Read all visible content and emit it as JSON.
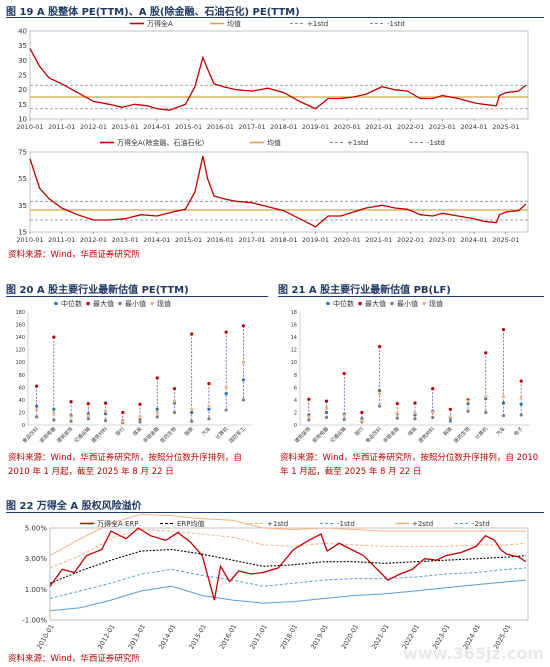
{
  "figures": {
    "fig19": {
      "title": "图 19 A 股整体 PE(TTM)、A 股(除金融、石油石化) PE(TTM)"
    },
    "fig20": {
      "title": "图 20 A 股主要行业最新估值 PE(TTM)"
    },
    "fig21": {
      "title": "图 21 A 股主要行业最新估值 PB(LF)"
    },
    "fig22": {
      "title": "图 22 万得全 A 股权风险溢价"
    }
  },
  "sources": {
    "s19": "资料来源：Wind，华西证券研究所",
    "s20a": "资料来源：Wind，华西证券研究所，按照分位数升序排列，自",
    "s20b": "2010 年 1 月起，截至 2025 年 8 月 22 日",
    "s21a": "资料来源：Wind，华西证券研究所，按照分位数升序排列，自 2010",
    "s21b": "年 1 月起，截至 2025 年 8 月 22 日",
    "s22": "资料来源：Wind，华西证券研究所"
  },
  "watermark": "www.365jz.com",
  "colors": {
    "main": "#c00000",
    "mean": "#d6a24a",
    "std": "#888888",
    "erp_mean": "#000000",
    "erp_std1": "#5b9bd5",
    "erp_std2": "#f4b183"
  },
  "chart_data": [
    {
      "type": "line",
      "id": "c1",
      "title": "",
      "ylim": [
        10,
        40
      ],
      "yticks": [
        10,
        15,
        20,
        25,
        30,
        35,
        40
      ],
      "xticks": [
        "2010-01",
        "2011-01",
        "2012-01",
        "2013-01",
        "2014-01",
        "2015-01",
        "2016-01",
        "2017-01",
        "2018-01",
        "2019-01",
        "2020-01",
        "2021-01",
        "2022-01",
        "2023-01",
        "2024-01",
        "2025-01"
      ],
      "legend": [
        "万得全A",
        "均值",
        "+1std",
        "-1std"
      ],
      "x": [
        2010.0,
        2010.3,
        2010.6,
        2011.0,
        2011.5,
        2012.0,
        2012.5,
        2012.9,
        2013.3,
        2013.7,
        2014.0,
        2014.4,
        2014.9,
        2015.2,
        2015.45,
        2015.6,
        2015.8,
        2016.1,
        2016.5,
        2017.0,
        2017.5,
        2018.0,
        2018.5,
        2019.0,
        2019.4,
        2019.8,
        2020.2,
        2020.6,
        2021.1,
        2021.5,
        2021.9,
        2022.3,
        2022.7,
        2023.0,
        2023.5,
        2024.0,
        2024.3,
        2024.7,
        2024.8,
        2025.0,
        2025.4,
        2025.63
      ],
      "values": [
        34,
        28,
        24,
        22,
        19,
        16,
        15,
        14,
        15,
        14.5,
        13.5,
        13,
        15,
        21,
        31,
        27,
        22,
        21,
        20,
        19.5,
        20.5,
        19,
        16,
        13.5,
        17,
        17,
        17.5,
        18.5,
        21,
        20,
        19.5,
        17,
        17,
        18,
        17,
        15.5,
        15,
        14.5,
        18,
        19,
        19.5,
        21.5
      ],
      "mean": 17.5,
      "std_plus": 21.5,
      "std_minus": 13.5
    },
    {
      "type": "line",
      "id": "c2",
      "title": "",
      "ylim": [
        15,
        75
      ],
      "yticks": [
        15,
        35,
        55,
        75
      ],
      "xticks": [
        "2010-01",
        "2011-01",
        "2012-01",
        "2013-01",
        "2014-01",
        "2015-01",
        "2016-01",
        "2017-01",
        "2018-01",
        "2019-01",
        "2020-01",
        "2021-01",
        "2022-01",
        "2023-01",
        "2024-01",
        "2025-01"
      ],
      "legend": [
        "万得全A(除金融、石油石化)",
        "均值",
        "+1std",
        "-1std"
      ],
      "x": [
        2010.0,
        2010.3,
        2010.6,
        2011.0,
        2011.5,
        2012.0,
        2012.5,
        2013.0,
        2013.5,
        2014.0,
        2014.5,
        2014.9,
        2015.2,
        2015.45,
        2015.6,
        2015.8,
        2016.1,
        2016.5,
        2017.0,
        2017.5,
        2018.0,
        2018.5,
        2019.0,
        2019.4,
        2019.8,
        2020.2,
        2020.6,
        2021.1,
        2021.5,
        2021.9,
        2022.3,
        2022.7,
        2023.0,
        2023.5,
        2024.0,
        2024.3,
        2024.7,
        2024.8,
        2025.0,
        2025.4,
        2025.63
      ],
      "values": [
        70,
        48,
        40,
        33,
        28,
        24,
        24,
        25,
        28,
        27,
        30,
        32,
        45,
        72,
        55,
        42,
        40,
        38,
        37,
        34,
        31,
        25,
        19,
        27,
        27,
        30,
        33,
        35,
        33,
        32,
        28,
        27,
        29,
        27,
        25,
        23,
        22,
        28,
        30,
        31,
        36
      ],
      "mean": 31.5,
      "std_plus": 38,
      "std_minus": 24
    },
    {
      "type": "scatter",
      "id": "c3",
      "title": "",
      "ylim": [
        0,
        180
      ],
      "yticks": [
        0,
        20,
        40,
        60,
        80,
        100,
        120,
        140,
        160,
        180
      ],
      "legend": [
        "中位数",
        "最大值",
        "最小值",
        "现值"
      ],
      "categories": [
        "食品饮料",
        "家用电器",
        "建筑装饰",
        "交通运输",
        "建筑材料",
        "银行",
        "煤炭",
        "非银金融",
        "医药生物",
        "钢铁",
        "汽车",
        "计算机",
        "国防军工"
      ],
      "max": [
        62,
        140,
        37,
        34,
        35,
        20,
        33,
        75,
        58,
        145,
        66,
        148,
        158
      ],
      "min": [
        13,
        8,
        6,
        10,
        7,
        4,
        5,
        13,
        20,
        6,
        10,
        24,
        40
      ],
      "median": [
        30,
        25,
        15,
        18,
        18,
        7,
        10,
        25,
        35,
        20,
        25,
        50,
        72
      ],
      "current": [
        24,
        19,
        13,
        15,
        22,
        6,
        12,
        20,
        38,
        25,
        30,
        60,
        100
      ]
    },
    {
      "type": "scatter",
      "id": "c4",
      "title": "",
      "ylim": [
        0,
        18
      ],
      "yticks": [
        0,
        2,
        4,
        6,
        8,
        10,
        12,
        14,
        16,
        18
      ],
      "legend": [
        "中位数",
        "最大值",
        "最小值",
        "现值"
      ],
      "categories": [
        "建筑装饰",
        "家用电器",
        "交通运输",
        "银行",
        "食品饮料",
        "非银金融",
        "煤炭",
        "建筑材料",
        "钢铁",
        "医药生物",
        "计算机",
        "汽车",
        "电子"
      ],
      "max": [
        4.1,
        3.8,
        8.2,
        2.0,
        12.5,
        3.4,
        3.5,
        5.8,
        2.5,
        4.0,
        11.5,
        15.2,
        7.0
      ],
      "min": [
        0.8,
        1.2,
        0.9,
        0.5,
        3.0,
        1.1,
        1.0,
        1.2,
        0.6,
        2.2,
        2.0,
        1.5,
        1.6
      ],
      "median": [
        1.6,
        2.0,
        1.7,
        1.0,
        5.5,
        1.8,
        1.6,
        2.2,
        1.1,
        3.4,
        4.2,
        3.5,
        3.3
      ],
      "current": [
        1.3,
        2.7,
        1.5,
        0.7,
        5.0,
        1.9,
        1.9,
        2.0,
        1.3,
        3.8,
        4.5,
        4.5,
        4.3
      ]
    },
    {
      "type": "line",
      "id": "c5",
      "title": "",
      "ylim": [
        -1,
        5
      ],
      "ytick_values": [
        -1,
        1,
        3,
        5
      ],
      "ytick_labels": [
        "-1.00%",
        "1.00%",
        "3.00%",
        "5.00%"
      ],
      "xticks": [
        "2010-01",
        "2012-01",
        "2013-01",
        "2014-01",
        "2015-01",
        "2016-01",
        "2017-01",
        "2018-01",
        "2019-01",
        "2020-01",
        "2021-01",
        "2022-01",
        "2023-01",
        "2024-01",
        "2025-01"
      ],
      "legend": [
        "万得全A ERP",
        "ERP均值",
        "+1std",
        "-1std",
        "+2std",
        "-2std"
      ],
      "x": [
        2010.0,
        2010.4,
        2010.8,
        2011.2,
        2011.7,
        2012.0,
        2012.5,
        2012.9,
        2013.3,
        2013.8,
        2014.2,
        2014.6,
        2015.0,
        2015.4,
        2015.6,
        2015.9,
        2016.2,
        2016.6,
        2017.0,
        2017.5,
        2018.0,
        2018.5,
        2018.9,
        2019.1,
        2019.5,
        2019.9,
        2020.3,
        2020.7,
        2021.1,
        2021.5,
        2021.9,
        2022.3,
        2022.7,
        2023.0,
        2023.5,
        2024.0,
        2024.3,
        2024.6,
        2024.8,
        2025.0,
        2025.4,
        2025.63
      ],
      "values": [
        1.2,
        2.3,
        2.1,
        3.2,
        3.6,
        4.8,
        4.3,
        5.0,
        4.5,
        4.2,
        4.7,
        4.1,
        3.2,
        0.3,
        2.5,
        1.5,
        2.2,
        2.0,
        2.1,
        2.4,
        3.6,
        4.2,
        4.6,
        3.5,
        4.0,
        3.6,
        3.2,
        2.4,
        1.6,
        2.0,
        2.3,
        3.0,
        2.9,
        3.2,
        3.4,
        3.8,
        4.5,
        4.2,
        3.6,
        3.3,
        3.1,
        2.8
      ],
      "mean": {
        "x": [
          2010.0,
          2011.0,
          2012.0,
          2013.0,
          2014.0,
          2015.0,
          2016.0,
          2017.0,
          2018.0,
          2019.0,
          2020.0,
          2021.0,
          2022.0,
          2023.0,
          2024.0,
          2025.0,
          2025.63
        ],
        "values": [
          1.4,
          2.2,
          2.9,
          3.5,
          3.6,
          3.3,
          2.9,
          2.5,
          2.6,
          2.8,
          2.8,
          2.7,
          2.8,
          2.9,
          3.0,
          3.1,
          3.2
        ]
      },
      "std_plus1": {
        "x": [
          2010.0,
          2011.0,
          2012.0,
          2013.0,
          2014.0,
          2015.0,
          2016.0,
          2017.0,
          2018.0,
          2019.0,
          2020.0,
          2021.0,
          2022.0,
          2023.0,
          2024.0,
          2025.0,
          2025.63
        ],
        "values": [
          2.4,
          3.2,
          4.3,
          4.9,
          4.8,
          4.6,
          4.4,
          3.9,
          3.8,
          4.0,
          3.9,
          3.8,
          3.8,
          3.8,
          3.9,
          3.9,
          4.0
        ]
      },
      "std_minus1": {
        "x": [
          2010.0,
          2011.0,
          2012.0,
          2013.0,
          2014.0,
          2015.0,
          2016.0,
          2017.0,
          2018.0,
          2019.0,
          2020.0,
          2021.0,
          2022.0,
          2023.0,
          2024.0,
          2025.0,
          2025.63
        ],
        "values": [
          0.4,
          0.9,
          1.4,
          2.0,
          2.3,
          1.9,
          1.6,
          1.2,
          1.4,
          1.6,
          1.7,
          1.7,
          1.8,
          2.0,
          2.1,
          2.3,
          2.4
        ]
      },
      "std_plus2": {
        "x": [
          2010.0,
          2011.0,
          2012.0,
          2013.0,
          2014.0,
          2015.0,
          2016.0,
          2017.0,
          2018.0,
          2019.0,
          2020.0,
          2021.0,
          2022.0,
          2023.0,
          2024.0,
          2025.0,
          2025.63
        ],
        "values": [
          3.2,
          4.3,
          5.3,
          5.9,
          5.8,
          5.6,
          5.5,
          5.0,
          4.9,
          5.0,
          4.9,
          4.8,
          4.8,
          4.8,
          4.8,
          4.8,
          4.8
        ]
      },
      "std_minus2": {
        "x": [
          2010.0,
          2011.0,
          2012.0,
          2013.0,
          2014.0,
          2015.0,
          2016.0,
          2017.0,
          2018.0,
          2019.0,
          2020.0,
          2021.0,
          2022.0,
          2023.0,
          2024.0,
          2025.0,
          2025.63
        ],
        "values": [
          -0.4,
          -0.2,
          0.3,
          0.9,
          1.2,
          0.6,
          0.3,
          0.1,
          0.2,
          0.4,
          0.6,
          0.7,
          0.9,
          1.1,
          1.3,
          1.5,
          1.6
        ]
      }
    }
  ]
}
